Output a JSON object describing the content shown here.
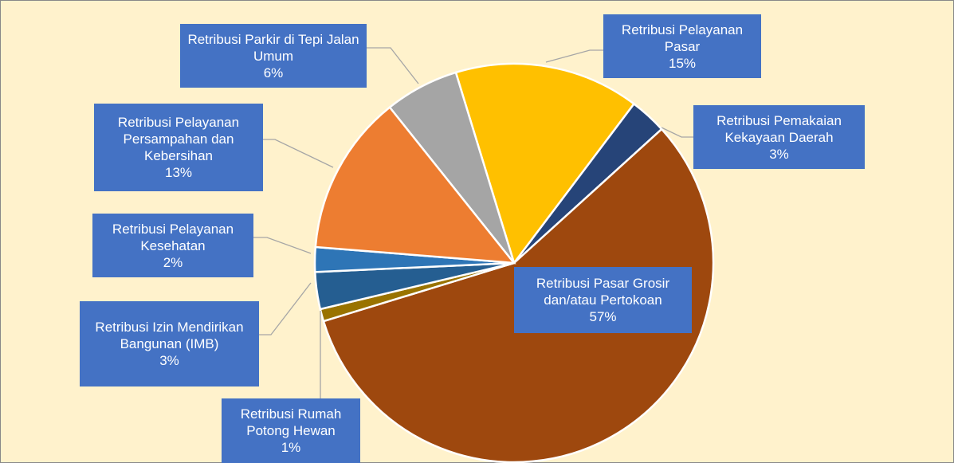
{
  "chart_data": {
    "type": "pie",
    "categories": [
      "Retribusi Pelayanan Pasar",
      "Retribusi Pemakaian Kekayaan Daerah",
      "Retribusi Pasar Grosir dan/atau Pertokoan",
      "Retribusi Rumah Potong Hewan",
      "Retribusi Izin Mendirikan Bangunan (IMB)",
      "Retribusi Pelayanan Kesehatan",
      "Retribusi Pelayanan Persampahan dan Kebersihan",
      "Retribusi Parkir di Tepi Jalan Umum"
    ],
    "values": [
      15,
      3,
      57,
      1,
      3,
      2,
      13,
      6
    ],
    "value_labels": [
      "15%",
      "3%",
      "57%",
      "1%",
      "3%",
      "2%",
      "13%",
      "6%"
    ],
    "colors": [
      "#FFC000",
      "#264478",
      "#9E480E",
      "#997300",
      "#255E91",
      "#2E75B6",
      "#ED7D31",
      "#A5A5A5"
    ]
  }
}
